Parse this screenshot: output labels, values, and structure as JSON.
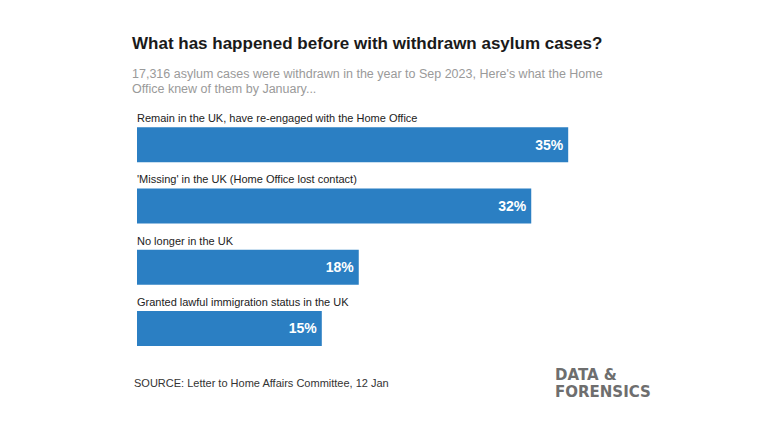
{
  "chart_data": {
    "type": "bar",
    "orientation": "horizontal",
    "title": "What has happened before with withdrawn asylum cases?",
    "subtitle": "17,316 asylum cases were withdrawn in the year to Sep 2023, Here's what the Home Office knew of them by January...",
    "categories": [
      "Remain in the UK, have re-engaged with the Home Office",
      "'Missing' in the UK (Home Office lost contact)",
      "No longer in the UK",
      "Granted lawful immigration status in the UK"
    ],
    "values": [
      35,
      32,
      18,
      15
    ],
    "value_labels": [
      "35%",
      "32%",
      "18%",
      "15%"
    ],
    "color": "#2b7fc3",
    "xlim": [
      0,
      50
    ],
    "data_labels": true,
    "tick_labels": false,
    "grid": false,
    "source": "SOURCE: Letter to Home Affairs Committee, 12 Jan",
    "logo": [
      "DATA &",
      "FORENSICS"
    ]
  }
}
